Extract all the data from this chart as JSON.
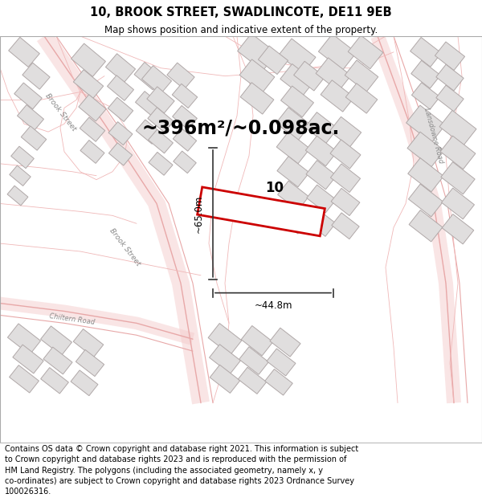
{
  "title_line1": "10, BROOK STREET, SWADLINCOTE, DE11 9EB",
  "title_line2": "Map shows position and indicative extent of the property.",
  "area_text": "~396m²/~0.098ac.",
  "label_10": "10",
  "dim_vertical": "~65.0m",
  "dim_horizontal": "~44.8m",
  "footer_text": "Contains OS data © Crown copyright and database right 2021. This information is subject to Crown copyright and database rights 2023 and is reproduced with the permission of HM Land Registry. The polygons (including the associated geometry, namely x, y co-ordinates) are subject to Crown copyright and database rights 2023 Ordnance Survey 100026316.",
  "map_bg": "#f7f4f4",
  "road_color": "#f0b8b8",
  "road_lw": 0.8,
  "building_fill": "#e0dede",
  "building_edge": "#b0a8a8",
  "building_lw": 0.7,
  "plot_fill": "#ffffff",
  "plot_edge": "#cc0000",
  "plot_lw": 2.0,
  "arrow_color": "#333333",
  "text_color": "#000000",
  "street_label_color": "#888888",
  "footer_fontsize": 7.0,
  "title_fontsize": 10.5,
  "subtitle_fontsize": 8.5,
  "area_fontsize": 17,
  "label_fontsize": 12,
  "dim_fontsize": 8.5
}
